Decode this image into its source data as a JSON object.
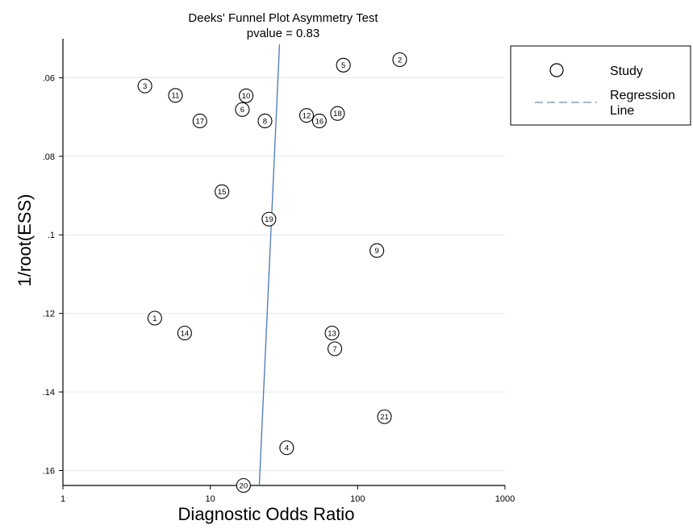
{
  "chart_data": {
    "type": "scatter",
    "title": "Deeks' Funnel Plot Asymmetry Test",
    "subtitle": "pvalue  =   0.83",
    "xlabel": "Diagnostic Odds Ratio",
    "ylabel": "1/root(ESS)",
    "x_scale": "log",
    "x_ticks": [
      1,
      10,
      100,
      1000
    ],
    "x_tick_labels": [
      "1",
      "10",
      "100",
      "1000"
    ],
    "y_ticks": [
      0.06,
      0.08,
      0.1,
      0.12,
      0.14,
      0.16
    ],
    "y_tick_labels": [
      ".06",
      ".08",
      ".1",
      ".12",
      ".14",
      ".16"
    ],
    "y_reversed": true,
    "xlim": [
      1,
      1000
    ],
    "ylim": [
      0.0515,
      0.1638
    ],
    "grid": true,
    "legend_position": "right",
    "legend": {
      "study_label": "Study",
      "regression_label_line1": "Regression",
      "regression_label_line2": "Line"
    },
    "series": [
      {
        "name": "Study",
        "points": [
          {
            "id": "1",
            "x": 4.2,
            "y": 0.1212
          },
          {
            "id": "2",
            "x": 193,
            "y": 0.0554
          },
          {
            "id": "3",
            "x": 3.6,
            "y": 0.0621
          },
          {
            "id": "4",
            "x": 33,
            "y": 0.1542
          },
          {
            "id": "5",
            "x": 80,
            "y": 0.0568
          },
          {
            "id": "6",
            "x": 16.5,
            "y": 0.0681
          },
          {
            "id": "7",
            "x": 70,
            "y": 0.129
          },
          {
            "id": "8",
            "x": 23.5,
            "y": 0.071
          },
          {
            "id": "9",
            "x": 135,
            "y": 0.104
          },
          {
            "id": "10",
            "x": 17.5,
            "y": 0.0646
          },
          {
            "id": "11",
            "x": 5.8,
            "y": 0.0645
          },
          {
            "id": "12",
            "x": 45,
            "y": 0.0696
          },
          {
            "id": "13",
            "x": 67,
            "y": 0.125
          },
          {
            "id": "14",
            "x": 6.7,
            "y": 0.125
          },
          {
            "id": "15",
            "x": 12,
            "y": 0.089
          },
          {
            "id": "16",
            "x": 55,
            "y": 0.071
          },
          {
            "id": "17",
            "x": 8.5,
            "y": 0.071
          },
          {
            "id": "18",
            "x": 73,
            "y": 0.0691
          },
          {
            "id": "19",
            "x": 25,
            "y": 0.096
          },
          {
            "id": "20",
            "x": 16.8,
            "y": 0.1638
          },
          {
            "id": "21",
            "x": 152,
            "y": 0.1463
          }
        ]
      },
      {
        "name": "Regression Line",
        "line": [
          {
            "x": 29.5,
            "y": 0.0515
          },
          {
            "x": 21.5,
            "y": 0.1638
          }
        ]
      }
    ]
  }
}
